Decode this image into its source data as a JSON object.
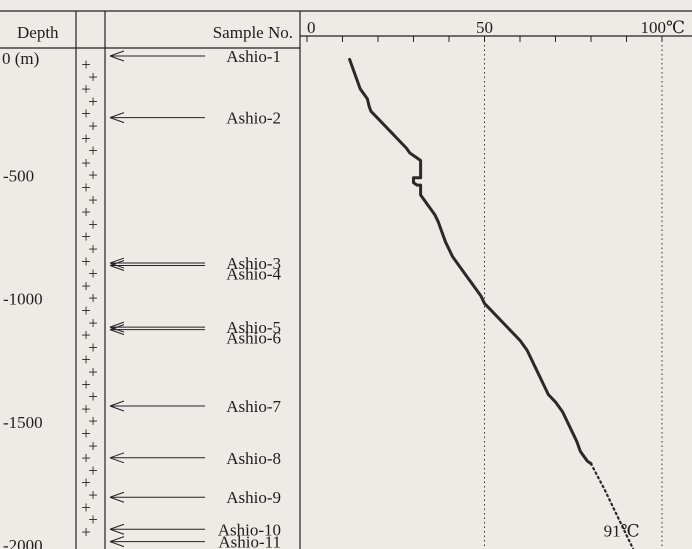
{
  "headers": {
    "depth": "Depth",
    "sample": "Sample No."
  },
  "chart_data": {
    "type": "line",
    "x_axis": {
      "range": [
        0,
        100
      ],
      "ticks": [
        0,
        50,
        100
      ],
      "tick_labels": [
        "0",
        "50",
        "100"
      ],
      "unit": "℃",
      "minor_tick_step": 10,
      "gridlines_at": [
        50,
        100
      ]
    },
    "y_axis": {
      "label": "Depth",
      "unit": "(m)",
      "range": [
        0,
        -2000
      ],
      "ticks": [
        0,
        -500,
        -1000,
        -1500,
        -2000
      ],
      "tick_labels": [
        "0 (m)",
        "-500",
        "-1000",
        "-1500",
        "-2000"
      ]
    },
    "series": [
      {
        "style": "solid",
        "x": [
          12,
          13,
          14,
          15,
          16,
          17,
          17.5,
          18,
          20,
          22,
          24,
          26,
          28,
          29,
          30,
          31,
          32,
          32,
          32,
          30,
          30,
          31,
          32,
          32,
          33,
          34,
          35,
          36,
          37,
          38,
          39,
          40,
          41,
          43,
          45,
          47,
          49,
          50,
          52,
          54,
          56,
          58,
          60,
          62,
          63,
          64,
          65,
          66,
          67,
          68,
          70,
          72,
          73,
          74,
          75,
          76,
          77,
          79,
          80
        ],
        "depth": [
          -30,
          -70,
          -110,
          -150,
          -170,
          -190,
          -220,
          -240,
          -270,
          -300,
          -330,
          -360,
          -390,
          -410,
          -420,
          -430,
          -440,
          -490,
          -510,
          -510,
          -530,
          -540,
          -540,
          -580,
          -600,
          -620,
          -640,
          -660,
          -690,
          -730,
          -770,
          -800,
          -830,
          -870,
          -910,
          -950,
          -990,
          -1020,
          -1050,
          -1080,
          -1110,
          -1140,
          -1170,
          -1210,
          -1240,
          -1270,
          -1300,
          -1330,
          -1360,
          -1390,
          -1420,
          -1460,
          -1490,
          -1520,
          -1550,
          -1580,
          -1620,
          -1660,
          -1670
        ]
      },
      {
        "style": "dotted",
        "x": [
          80,
          82,
          84,
          86,
          88,
          90,
          92
        ],
        "depth": [
          -1670,
          -1725,
          -1780,
          -1840,
          -1900,
          -1960,
          -2020
        ]
      }
    ],
    "annotations": [
      {
        "text": "91℃",
        "x": 92,
        "depth": -1950
      }
    ],
    "samples": [
      {
        "id": "Ashio-1",
        "depth": 0
      },
      {
        "id": "Ashio-2",
        "depth": -250
      },
      {
        "id": "Ashio-3",
        "depth": -840
      },
      {
        "id": "Ashio-4",
        "depth": -850
      },
      {
        "id": "Ashio-5",
        "depth": -1100
      },
      {
        "id": "Ashio-6",
        "depth": -1110
      },
      {
        "id": "Ashio-7",
        "depth": -1420
      },
      {
        "id": "Ashio-8",
        "depth": -1630
      },
      {
        "id": "Ashio-9",
        "depth": -1790
      },
      {
        "id": "Ashio-10",
        "depth": -1920
      },
      {
        "id": "Ashio-11",
        "depth": -1970
      }
    ],
    "lithology_symbol": "+",
    "grid": "dotted vertical lines at 50 and 100",
    "colors": {
      "line": "#2a2a2a",
      "background": "#ecebe6"
    }
  }
}
